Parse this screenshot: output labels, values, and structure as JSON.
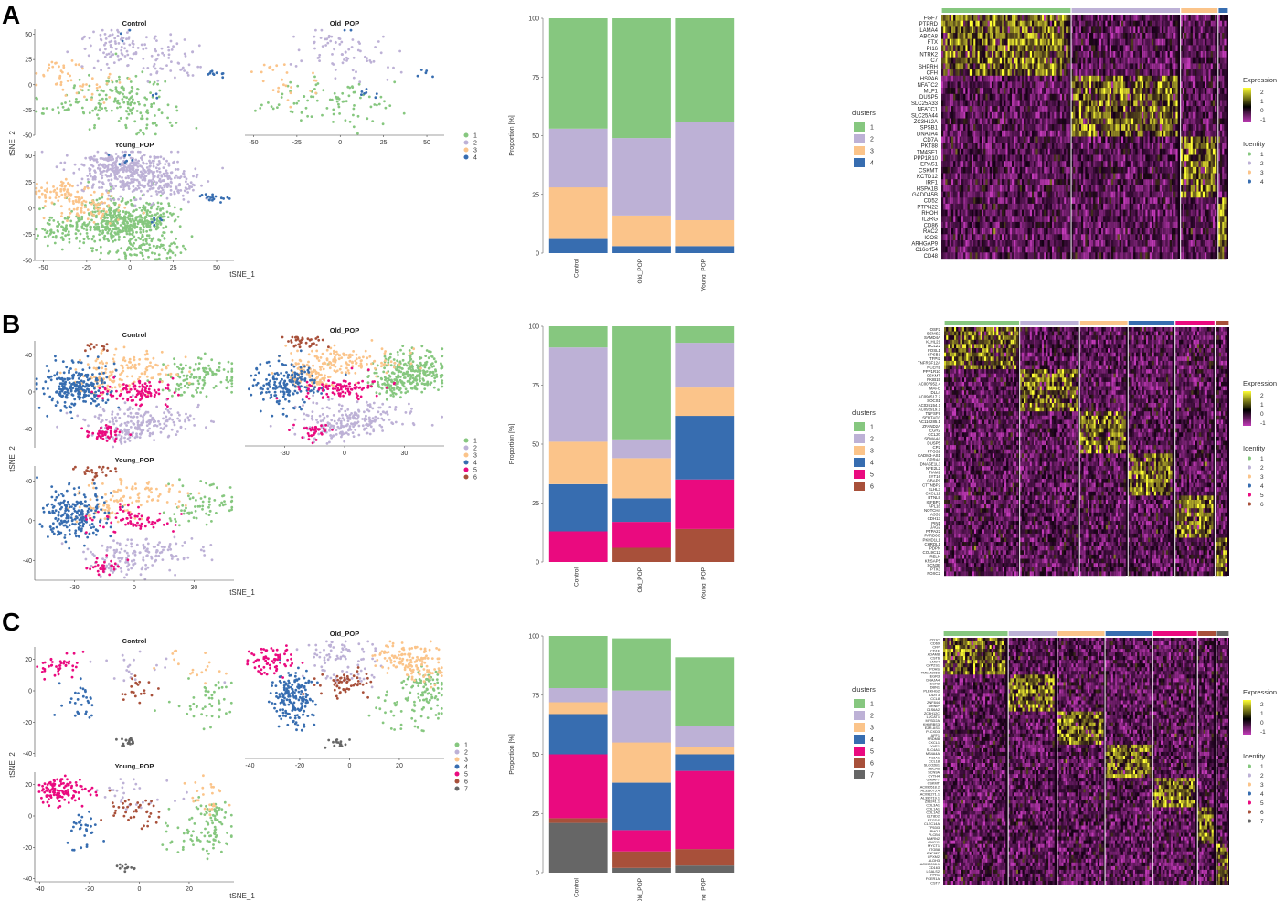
{
  "colors": {
    "c1": "#86C77F",
    "c2": "#BDB1D6",
    "c3": "#FBC48A",
    "c4": "#376DB0",
    "c5": "#EA0A7F",
    "c6": "#A8503A",
    "c7": "#666666",
    "heat_low": "#C23AB8",
    "heat_mid": "#000000",
    "heat_high": "#FFFF33"
  },
  "chart_data": [
    {
      "panel": "A",
      "type": "scatter",
      "title": "t-SNE of clusters across Control, Old_POP and Young_POP",
      "xlabel": "tSNE_1",
      "ylabel": "tSNE_2",
      "subplots": [
        {
          "title": "Control",
          "xlim": [
            -55,
            60
          ],
          "ylim": [
            -50,
            55
          ],
          "yticks": [
            50,
            25,
            0,
            -25,
            -50
          ],
          "xticks": []
        },
        {
          "title": "Old_POP",
          "xlim": [
            -55,
            60
          ],
          "ylim": [
            -50,
            55
          ],
          "yticks": [],
          "xticks": [
            -50,
            -25,
            0,
            25,
            50
          ]
        },
        {
          "title": "Young_POP",
          "xlim": [
            -55,
            60
          ],
          "ylim": [
            -50,
            55
          ],
          "yticks": [
            50,
            25,
            0,
            -25,
            -50
          ],
          "xticks": [
            -50,
            -25,
            0,
            25,
            50
          ]
        }
      ],
      "legend": [
        "1",
        "2",
        "3",
        "4"
      ]
    },
    {
      "panel": "A",
      "type": "bar",
      "stacked": true,
      "categories": [
        "Control",
        "Old_POP",
        "Young_POP"
      ],
      "ylabel": "Proportion [%]",
      "ylim": [
        0,
        100
      ],
      "yticks": [
        0,
        25,
        50,
        75,
        100
      ],
      "legend_title": "clusters",
      "series": [
        {
          "name": "1",
          "values": [
            47,
            51,
            44
          ]
        },
        {
          "name": "2",
          "values": [
            25,
            33,
            42
          ]
        },
        {
          "name": "3",
          "values": [
            22,
            13,
            11
          ]
        },
        {
          "name": "4",
          "values": [
            6,
            3,
            3
          ]
        }
      ]
    },
    {
      "panel": "A",
      "type": "heatmap",
      "clusters": [
        "1",
        "2",
        "3",
        "4"
      ],
      "cluster_widths": [
        0.38,
        0.32,
        0.11,
        0.03
      ],
      "genes": [
        "FGF7",
        "PTPRD",
        "LAMA4",
        "ABCA8",
        "FTX",
        "PI16",
        "NTRK2",
        "C7",
        "SHPRH",
        "CFH",
        "HSPA6",
        "NFATC2",
        "MLF1",
        "DUSP5",
        "SLC25A33",
        "NFATC1",
        "SLC25A44",
        "ZC3H12A",
        "SPSB1",
        "DNAJA4",
        "CD7A",
        "PKT88",
        "TM4SF1",
        "PPP1R10",
        "EPAS1",
        "CSKMT",
        "KCTD12",
        "IRF1",
        "HSPA1B",
        "GADD45B",
        "CD52",
        "PTPN22",
        "RHOH",
        "IL2RG",
        "CD86",
        "RAC2",
        "ICOS",
        "ARHGAP9",
        "C16orf54",
        "CD48"
      ],
      "gene_groups": [
        10,
        20,
        30,
        40
      ],
      "legend_title": "Expression",
      "scale_ticks": [
        "2",
        "1",
        "0",
        "-1"
      ],
      "identity_title": "Identity",
      "identity_labels": [
        "1",
        "2",
        "3",
        "4"
      ]
    },
    {
      "panel": "B",
      "type": "scatter",
      "xlabel": "tSNE_1",
      "ylabel": "tSNE_2",
      "subplots": [
        {
          "title": "Control",
          "xlim": [
            -50,
            50
          ],
          "ylim": [
            -60,
            55
          ],
          "yticks": [
            40,
            0,
            -40
          ],
          "xticks": []
        },
        {
          "title": "Old_POP",
          "xlim": [
            -50,
            50
          ],
          "ylim": [
            -60,
            55
          ],
          "yticks": [],
          "xticks": [
            -30,
            0,
            30
          ]
        },
        {
          "title": "Young_POP",
          "xlim": [
            -50,
            50
          ],
          "ylim": [
            -60,
            55
          ],
          "yticks": [
            40,
            0,
            -40
          ],
          "xticks": [
            -30,
            0,
            30
          ]
        }
      ],
      "legend": [
        "1",
        "2",
        "3",
        "4",
        "5",
        "6"
      ]
    },
    {
      "panel": "B",
      "type": "bar",
      "stacked": true,
      "categories": [
        "Control",
        "Old_POP",
        "Young_POP"
      ],
      "ylabel": "Proportion [%]",
      "ylim": [
        0,
        100
      ],
      "yticks": [
        0,
        25,
        50,
        75,
        100
      ],
      "legend_title": "clusters",
      "series": [
        {
          "name": "1",
          "values": [
            9,
            48,
            7
          ]
        },
        {
          "name": "2",
          "values": [
            40,
            8,
            19
          ]
        },
        {
          "name": "3",
          "values": [
            18,
            17,
            12
          ]
        },
        {
          "name": "4",
          "values": [
            20,
            10,
            27
          ]
        },
        {
          "name": "5",
          "values": [
            13,
            11,
            21
          ]
        },
        {
          "name": "6",
          "values": [
            0,
            6,
            14
          ]
        }
      ]
    },
    {
      "panel": "B",
      "type": "heatmap",
      "clusters": [
        "1",
        "2",
        "3",
        "4",
        "5",
        "6"
      ],
      "cluster_widths": [
        0.265,
        0.21,
        0.17,
        0.165,
        0.14,
        0.05
      ],
      "genes": [
        "OSF2",
        "BSMS2",
        "SAMD4A",
        "KLHL21",
        "HCLZ2",
        "FOSL1",
        "SPSB1",
        "TFPI2",
        "TNFRSF12A",
        "NCEH1",
        "PPP1R10",
        "CSKMT",
        "PKIB15",
        "AC007952.4",
        "MAFB",
        "DLL4",
        "AC090517.2",
        "SOCS1",
        "AC026154.1",
        "AC092919.1",
        "TNFSF9",
        "SERTAD3",
        "AC110285.1",
        "ZFAND2A",
        "EGR2",
        "CCL20",
        "SEMA4A",
        "DUSP5",
        "CP2",
        "PTGS2",
        "CADM3-AS1",
        "GPR4A",
        "DNASE1L3",
        "NFE2L2",
        "TIAM1",
        "SYT16",
        "GBAP9",
        "CTTNBP2",
        "KLHL3",
        "CXCL12",
        "BTNL9",
        "IGFBP3",
        "APL16",
        "NOTCH4",
        "ASS1",
        "CDH13",
        "PIN1",
        "JAG2",
        "PTPA22",
        "PARD6G",
        "PKHD1L1",
        "CHRDL1",
        "PDPN",
        "COL9C12",
        "RELN",
        "KRSAP5",
        "SCN3B",
        "PTX3",
        "FOXC2"
      ],
      "gene_groups": [
        10,
        20,
        30,
        40,
        50,
        59
      ],
      "legend_title": "Expression",
      "scale_ticks": [
        "2",
        "1",
        "0",
        "-1"
      ],
      "identity_title": "Identity",
      "identity_labels": [
        "1",
        "2",
        "3",
        "4",
        "5",
        "6"
      ]
    },
    {
      "panel": "C",
      "type": "scatter",
      "xlabel": "tSNE_1",
      "ylabel": "tSNE_2",
      "subplots": [
        {
          "title": "Control",
          "xlim": [
            -42,
            38
          ],
          "ylim": [
            -42,
            28
          ],
          "yticks": [
            20,
            0,
            -20,
            -40
          ],
          "xticks": []
        },
        {
          "title": "Old_POP",
          "xlim": [
            -42,
            38
          ],
          "ylim": [
            -42,
            28
          ],
          "yticks": [],
          "xticks": [
            -40,
            -20,
            0,
            20
          ]
        },
        {
          "title": "Young_POP",
          "xlim": [
            -42,
            38
          ],
          "ylim": [
            -42,
            28
          ],
          "yticks": [
            20,
            0,
            -20,
            -40
          ],
          "xticks": [
            -40,
            -20,
            0,
            20
          ]
        }
      ],
      "legend": [
        "1",
        "2",
        "3",
        "4",
        "5",
        "6",
        "7"
      ]
    },
    {
      "panel": "C",
      "type": "bar",
      "stacked": true,
      "categories": [
        "Control",
        "Old_POP",
        "Young_POP"
      ],
      "ylabel": "Proportion [%]",
      "ylim": [
        0,
        100
      ],
      "yticks": [
        0,
        25,
        50,
        75,
        100
      ],
      "legend_title": "clusters",
      "series": [
        {
          "name": "1",
          "values": [
            22,
            22,
            29
          ]
        },
        {
          "name": "2",
          "values": [
            6,
            22,
            9
          ]
        },
        {
          "name": "3",
          "values": [
            5,
            17,
            3
          ]
        },
        {
          "name": "4",
          "values": [
            17,
            20,
            7
          ]
        },
        {
          "name": "5",
          "values": [
            27,
            9,
            33
          ]
        },
        {
          "name": "6",
          "values": [
            2,
            7,
            7
          ]
        },
        {
          "name": "7",
          "values": [
            21,
            2,
            3
          ]
        }
      ]
    },
    {
      "panel": "C",
      "type": "heatmap",
      "clusters": [
        "1",
        "2",
        "3",
        "4",
        "5",
        "6",
        "7"
      ],
      "cluster_widths": [
        0.225,
        0.17,
        0.165,
        0.165,
        0.155,
        0.065,
        0.045
      ],
      "genes": [
        "CD1C",
        "CD69",
        "CFP",
        "CD1F",
        "ADAM8",
        "CST6",
        "LMO4",
        "CYP2S1",
        "POHS",
        "TMEM106B",
        "EGR3",
        "DNAJA4",
        "EGR2",
        "DBN1",
        "PLEKHG2",
        "DDIT3",
        "CCL8",
        "ZNF844",
        "MRNIP",
        "C1S6A2",
        "ZC3H12C",
        "LUCAT1",
        "MFSD2A",
        "KHDRBS3",
        "EZR-AS1",
        "PLCXD3",
        "AFF1",
        "PRDM8",
        "CXCL1",
        "LYVE1",
        "SLC4A1",
        "MS4A4A",
        "F13A1",
        "CCL18",
        "SLCO2B1",
        "ABCA6",
        "SCN9A",
        "CYTH4",
        "GIMAP7",
        "CSKMT",
        "AC090518.2",
        "AL358075.4",
        "AC091271.1",
        "AL390719.1",
        "Z93241.1",
        "COL3A1",
        "COL1A1",
        "COL1A2",
        "GLT8D2",
        "PTGDS",
        "CLEC14A",
        "TP53I3",
        "RHOJ",
        "PLCB4",
        "MMRN2",
        "GNG11",
        "MYCT1",
        "ITGB8",
        "ZNF827",
        "CPXM2",
        "ALDH3",
        "AC092098.1",
        "CD163",
        "LGALS2",
        "FPR1",
        "FCER1A",
        "CST7"
      ],
      "gene_groups": [
        10,
        20,
        29,
        38,
        46,
        56,
        67
      ],
      "legend_title": "Expression",
      "scale_ticks": [
        "2",
        "1",
        "0",
        "-1"
      ],
      "identity_title": "Identity",
      "identity_labels": [
        "1",
        "2",
        "3",
        "4",
        "5",
        "6",
        "7"
      ]
    }
  ]
}
